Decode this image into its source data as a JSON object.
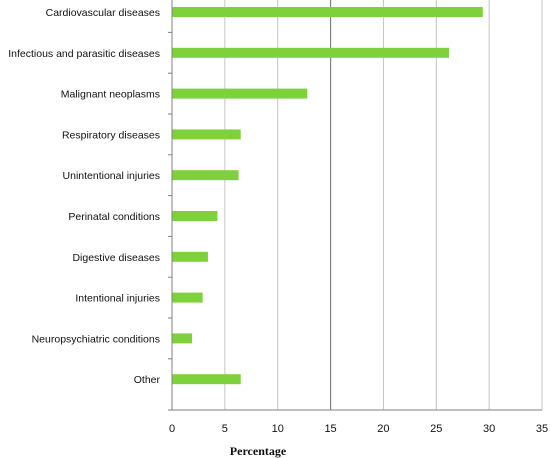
{
  "chart_data": {
    "type": "bar",
    "orientation": "horizontal",
    "categories": [
      "Cardiovascular diseases",
      "Infectious and parasitic diseases",
      "Malignant neoplasms",
      "Respiratory diseases",
      "Unintentional injuries",
      "Perinatal conditions",
      "Digestive diseases",
      "Intentional injuries",
      "Neuropsychiatric conditions",
      "Other"
    ],
    "values": [
      29.4,
      26.2,
      12.8,
      6.5,
      6.3,
      4.3,
      3.4,
      2.9,
      1.9,
      6.5
    ],
    "xlabel": "Percentage",
    "ylabel": "",
    "xlim": [
      0,
      35
    ],
    "xticks": [
      "0",
      "5",
      "10",
      "15",
      "20",
      "25",
      "30",
      "35"
    ],
    "grid": "vertical",
    "legend": "none",
    "bar_color": "#7fd13b"
  }
}
